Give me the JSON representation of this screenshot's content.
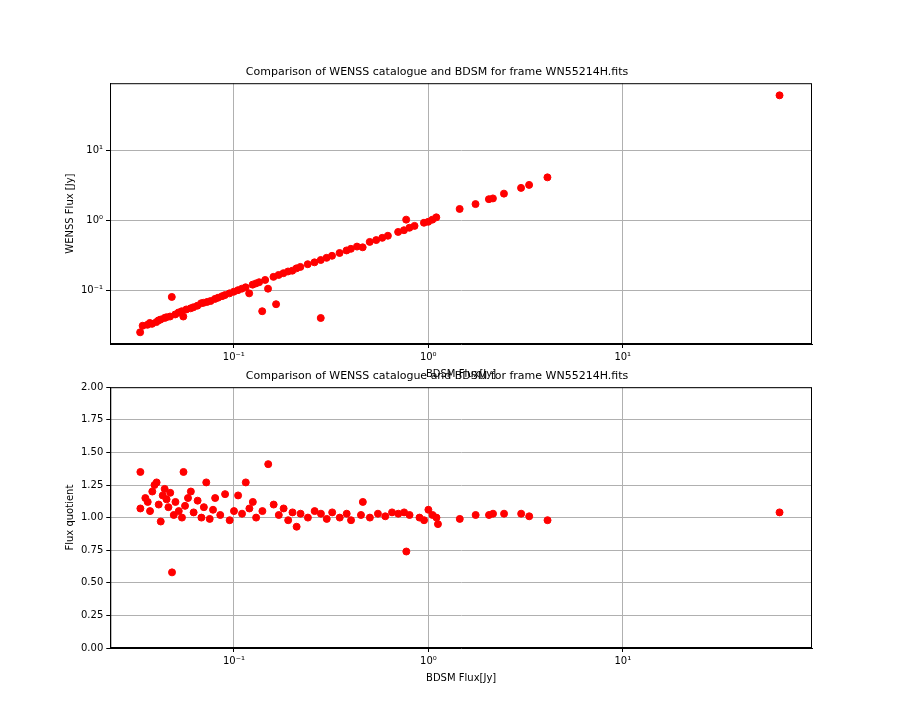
{
  "chart_data": [
    {
      "type": "scatter",
      "title": "Comparison of WENSS catalogue and BDSM for frame WN55214H.fits",
      "x_label": "BDSM Flux[Jy]",
      "y_label": "WENSS Flux [Jy]",
      "color": "#ff0000",
      "marker": "circle",
      "log": true,
      "grid": true,
      "xlim": [
        0.0231,
        94
      ],
      "ylim": [
        0.017,
        91
      ],
      "xticks": [
        {
          "value": 0.1,
          "label": "10⁻¹"
        },
        {
          "value": 1,
          "label": "10⁰"
        },
        {
          "value": 10,
          "label": "10¹"
        }
      ],
      "yticks": [
        {
          "value": 0.1,
          "label": "10⁻¹"
        },
        {
          "value": 1,
          "label": "10⁰"
        },
        {
          "value": 10,
          "label": "10¹"
        }
      ],
      "x": [
        0.033,
        0.034,
        0.036,
        0.037,
        0.038,
        0.04,
        0.041,
        0.042,
        0.044,
        0.045,
        0.047,
        0.048,
        0.05,
        0.052,
        0.054,
        0.055,
        0.057,
        0.06,
        0.062,
        0.065,
        0.068,
        0.07,
        0.073,
        0.076,
        0.08,
        0.083,
        0.087,
        0.09,
        0.095,
        0.1,
        0.105,
        0.11,
        0.115,
        0.12,
        0.125,
        0.13,
        0.135,
        0.14,
        0.145,
        0.15,
        0.16,
        0.165,
        0.17,
        0.18,
        0.19,
        0.2,
        0.21,
        0.22,
        0.24,
        0.26,
        0.28,
        0.28,
        0.3,
        0.32,
        0.35,
        0.38,
        0.4,
        0.43,
        0.46,
        0.5,
        0.54,
        0.58,
        0.62,
        0.7,
        0.75,
        0.77,
        0.8,
        0.85,
        0.95,
        1.0,
        1.05,
        1.1,
        1.45,
        1.75,
        2.05,
        2.15,
        2.45,
        3.0,
        3.3,
        4.1,
        64
      ],
      "values": [
        0.025,
        0.031,
        0.032,
        0.034,
        0.033,
        0.035,
        0.037,
        0.038,
        0.04,
        0.041,
        0.042,
        0.08,
        0.045,
        0.048,
        0.05,
        0.042,
        0.053,
        0.055,
        0.057,
        0.06,
        0.065,
        0.066,
        0.068,
        0.07,
        0.075,
        0.078,
        0.082,
        0.085,
        0.09,
        0.095,
        0.1,
        0.105,
        0.11,
        0.09,
        0.12,
        0.125,
        0.13,
        0.05,
        0.14,
        0.105,
        0.155,
        0.063,
        0.165,
        0.175,
        0.185,
        0.19,
        0.205,
        0.215,
        0.235,
        0.25,
        0.27,
        0.04,
        0.29,
        0.31,
        0.34,
        0.37,
        0.39,
        0.42,
        0.41,
        0.49,
        0.52,
        0.56,
        0.6,
        0.68,
        0.72,
        1.02,
        0.78,
        0.83,
        0.92,
        0.95,
        1.02,
        1.1,
        1.45,
        1.7,
        2.0,
        2.05,
        2.4,
        2.9,
        3.2,
        4.1,
        61
      ]
    },
    {
      "type": "scatter",
      "title": "Comparison of WENSS catalogue and BDSM for frame WN55214H.fits",
      "x_label": "BDSM Flux[Jy]",
      "y_label": "Flux quotient",
      "color": "#ff0000",
      "marker": "circle",
      "log": "x",
      "grid": true,
      "xlim": [
        0.0231,
        94
      ],
      "ylim": [
        0,
        2
      ],
      "xticks": [
        {
          "value": 0.1,
          "label": "10⁻¹"
        },
        {
          "value": 1,
          "label": "10⁰"
        },
        {
          "value": 10,
          "label": "10¹"
        }
      ],
      "yticks": [
        {
          "value": 0,
          "label": "0.00"
        },
        {
          "value": 0.25,
          "label": "0.25"
        },
        {
          "value": 0.5,
          "label": "0.50"
        },
        {
          "value": 0.75,
          "label": "0.75"
        },
        {
          "value": 1,
          "label": "1.00"
        },
        {
          "value": 1.25,
          "label": "1.25"
        },
        {
          "value": 1.5,
          "label": "1.50"
        },
        {
          "value": 1.75,
          "label": "1.75"
        },
        {
          "value": 2,
          "label": "2.00"
        }
      ],
      "x": [
        0.033,
        0.033,
        0.035,
        0.036,
        0.037,
        0.038,
        0.039,
        0.04,
        0.041,
        0.042,
        0.043,
        0.044,
        0.045,
        0.046,
        0.047,
        0.048,
        0.049,
        0.05,
        0.052,
        0.054,
        0.055,
        0.056,
        0.058,
        0.06,
        0.062,
        0.065,
        0.068,
        0.07,
        0.072,
        0.075,
        0.078,
        0.08,
        0.085,
        0.09,
        0.095,
        0.1,
        0.105,
        0.11,
        0.115,
        0.12,
        0.125,
        0.13,
        0.14,
        0.15,
        0.16,
        0.17,
        0.18,
        0.19,
        0.2,
        0.21,
        0.22,
        0.24,
        0.26,
        0.28,
        0.3,
        0.32,
        0.35,
        0.38,
        0.4,
        0.45,
        0.46,
        0.5,
        0.55,
        0.6,
        0.65,
        0.7,
        0.75,
        0.77,
        0.8,
        0.9,
        0.95,
        1.0,
        1.05,
        1.1,
        1.12,
        1.45,
        1.75,
        2.05,
        2.15,
        2.45,
        3.0,
        3.3,
        4.1,
        64
      ],
      "values": [
        1.35,
        1.07,
        1.15,
        1.12,
        1.05,
        1.2,
        1.25,
        1.27,
        1.1,
        0.97,
        1.17,
        1.22,
        1.14,
        1.08,
        1.19,
        0.58,
        1.02,
        1.12,
        1.05,
        1.0,
        1.35,
        1.09,
        1.15,
        1.2,
        1.04,
        1.13,
        1.0,
        1.08,
        1.27,
        0.99,
        1.06,
        1.15,
        1.02,
        1.18,
        0.98,
        1.05,
        1.17,
        1.03,
        1.27,
        1.07,
        1.12,
        1.0,
        1.05,
        1.41,
        1.1,
        1.02,
        1.07,
        0.98,
        1.04,
        0.93,
        1.03,
        1.0,
        1.05,
        1.03,
        0.99,
        1.04,
        1.0,
        1.03,
        0.98,
        1.02,
        1.12,
        1.0,
        1.03,
        1.01,
        1.04,
        1.03,
        1.04,
        0.74,
        1.02,
        1.0,
        0.98,
        1.06,
        1.02,
        1.0,
        0.95,
        0.99,
        1.02,
        1.02,
        1.03,
        1.03,
        1.03,
        1.01,
        0.98,
        1.04
      ]
    }
  ]
}
